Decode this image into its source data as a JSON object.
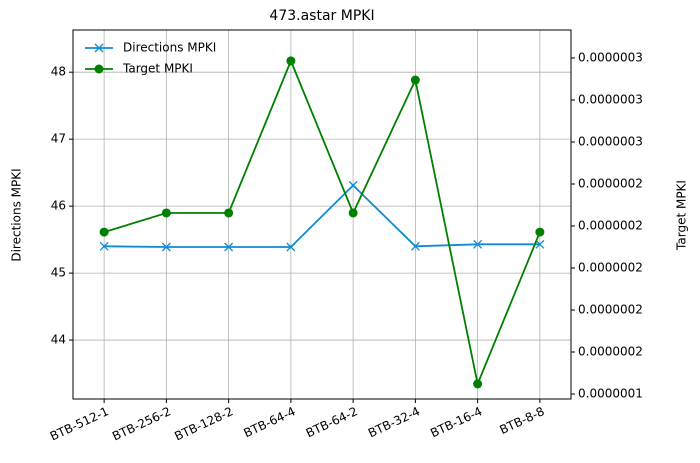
{
  "chart_data": {
    "type": "line",
    "title": "473.astar MPKI",
    "categories": [
      "BTB-512-1",
      "BTB-256-2",
      "BTB-128-2",
      "BTB-64-4",
      "BTB-64-2",
      "BTB-32-4",
      "BTB-16-4",
      "BTB-8-8"
    ],
    "y_label": "Directions MPKI",
    "y2_label": "Target MPKI",
    "ylim": [
      43.12,
      48.63
    ],
    "yticks": [
      44,
      45,
      46,
      47,
      48
    ],
    "y2lim": [
      1.3762e-07,
      3.1333e-07
    ],
    "y2ticks": [
      {
        "value": 1.4e-07,
        "label": "0.0000001"
      },
      {
        "value": 1.6e-07,
        "label": "0.0000002"
      },
      {
        "value": 1.8e-07,
        "label": "0.0000002"
      },
      {
        "value": 2e-07,
        "label": "0.0000002"
      },
      {
        "value": 2.2e-07,
        "label": "0.0000002"
      },
      {
        "value": 2.4e-07,
        "label": "0.0000002"
      },
      {
        "value": 2.6e-07,
        "label": "0.0000003"
      },
      {
        "value": 2.8e-07,
        "label": "0.0000003"
      },
      {
        "value": 3e-07,
        "label": "0.0000003"
      }
    ],
    "grid": true,
    "legend": "upper left",
    "series": [
      {
        "name": "Directions MPKI",
        "color": "#0e8bd3",
        "marker": "x",
        "values": [
          45.4,
          45.39,
          45.39,
          45.39,
          46.31,
          45.4,
          45.43,
          45.43
        ]
      },
      {
        "name": "Target MPKI",
        "color": "#008000",
        "marker": "o",
        "axis": "y2",
        "values": [
          2.171e-07,
          2.262e-07,
          2.262e-07,
          2.986e-07,
          2.262e-07,
          2.895e-07,
          1.448e-07,
          2.171e-07
        ]
      }
    ]
  }
}
